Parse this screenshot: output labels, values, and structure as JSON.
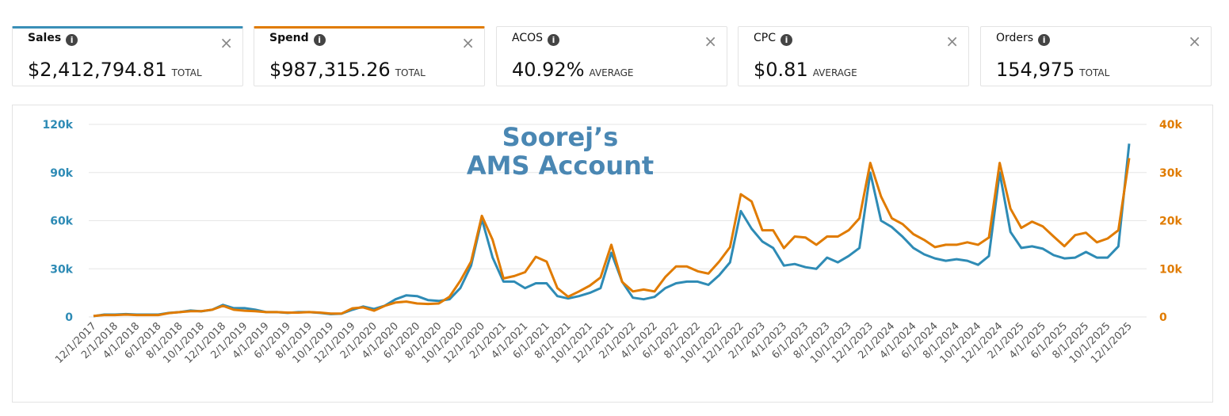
{
  "cards": [
    {
      "label": "Sales",
      "value": "$2,412,794.81",
      "unit": "TOTAL",
      "color": "#3a8fb7"
    },
    {
      "label": "Spend",
      "value": "$987,315.26",
      "unit": "TOTAL",
      "color": "#e07b00"
    },
    {
      "label": "ACOS",
      "value": "40.92%",
      "unit": "AVERAGE"
    },
    {
      "label": "CPC",
      "value": "$0.81",
      "unit": "AVERAGE"
    },
    {
      "label": "Orders",
      "value": "154,975",
      "unit": "TOTAL"
    }
  ],
  "chart_data": {
    "type": "line",
    "title": [
      "Soorej’s",
      "AMS Account"
    ],
    "categories": [
      "12/1/2017",
      null,
      "2/1/2018",
      null,
      "4/1/2018",
      null,
      "6/1/2018",
      null,
      "8/1/2018",
      null,
      "10/1/2018",
      null,
      "12/1/2018",
      null,
      "2/1/2019",
      null,
      "4/1/2019",
      null,
      "6/1/2019",
      null,
      "8/1/2019",
      null,
      "10/1/2019",
      null,
      "12/1/2019",
      null,
      "2/1/2020",
      null,
      "4/1/2020",
      null,
      "6/1/2020",
      null,
      "8/1/2020",
      null,
      "10/1/2020",
      null,
      "12/1/2020",
      null,
      "2/1/2021",
      null,
      "4/1/2021",
      null,
      "6/1/2021",
      null,
      "8/1/2021",
      null,
      "10/1/2021",
      null,
      "12/1/2021",
      null,
      "2/1/2022",
      null,
      "4/1/2022",
      null,
      "6/1/2022",
      null,
      "8/1/2022",
      null,
      "10/1/2022",
      null,
      "12/1/2022",
      null,
      "2/1/2023",
      null,
      "4/1/2023",
      null,
      "6/1/2023",
      null,
      "8/1/2023",
      null,
      "10/1/2023",
      null,
      "12/1/2023",
      null,
      "2/1/2024",
      null,
      "4/1/2024",
      null,
      "6/1/2024",
      null,
      "8/1/2024",
      null,
      "10/1/2024",
      null,
      "12/1/2024",
      null,
      "2/1/2025",
      null,
      "4/1/2025",
      null,
      "6/1/2025",
      null,
      "8/1/2025",
      null,
      "10/1/2025",
      null,
      "12/1/2025"
    ],
    "series": [
      {
        "color": "#2e8bb5",
        "values": [
          500,
          1500,
          1500,
          1800,
          1500,
          1500,
          1500,
          2500,
          3000,
          4000,
          3500,
          4500,
          7500,
          5500,
          5500,
          4500,
          3000,
          3000,
          2500,
          3000,
          3000,
          2500,
          1800,
          2000,
          4500,
          6500,
          5000,
          7000,
          11000,
          13500,
          13000,
          10500,
          10000,
          11000,
          18000,
          32000,
          61000,
          37000,
          22000,
          22000,
          18000,
          21000,
          21000,
          13000,
          11500,
          13000,
          15000,
          18000,
          40000,
          22000,
          12000,
          11000,
          12500,
          18000,
          21000,
          22000,
          22000,
          20000,
          26000,
          34000,
          66000,
          55000,
          47000,
          43000,
          32000,
          33000,
          31000,
          30000,
          37000,
          34000,
          38000,
          43000,
          90000,
          60000,
          56000,
          50000,
          43000,
          39000,
          36500,
          35000,
          36000,
          35000,
          32500,
          38000,
          90000,
          53000,
          43000,
          44000,
          42500,
          38500,
          36500,
          37000,
          40500,
          37000,
          37000,
          44000,
          108000
        ]
      },
      {
        "color": "#e07b00",
        "axis": "y2",
        "values": [
          200,
          400,
          400,
          500,
          400,
          400,
          400,
          800,
          1000,
          1200,
          1200,
          1500,
          2300,
          1500,
          1300,
          1200,
          1000,
          1000,
          900,
          900,
          1000,
          900,
          700,
          700,
          1800,
          2000,
          1300,
          2300,
          3000,
          3200,
          2800,
          2700,
          2800,
          4200,
          7500,
          11500,
          21000,
          16000,
          8000,
          8500,
          9300,
          12500,
          11500,
          6000,
          4200,
          5300,
          6500,
          8200,
          15000,
          7300,
          5300,
          5700,
          5300,
          8300,
          10500,
          10500,
          9500,
          9000,
          11500,
          14500,
          25500,
          24000,
          18000,
          18000,
          14300,
          16700,
          16500,
          15000,
          16700,
          16700,
          18000,
          20500,
          32000,
          25000,
          20500,
          19300,
          17200,
          16000,
          14500,
          15000,
          15000,
          15500,
          15000,
          16500,
          32000,
          22500,
          18500,
          19800,
          18800,
          16700,
          14700,
          17000,
          17500,
          15500,
          16300,
          18000,
          33000
        ]
      }
    ],
    "ylim": [
      0,
      120000
    ],
    "yticks": [
      0,
      {
        "value": 30000,
        "label": "30k"
      },
      {
        "value": 60000,
        "label": "60k"
      },
      {
        "value": 90000,
        "label": "90k"
      },
      {
        "value": 120000,
        "label": "120k"
      }
    ],
    "y2lim": [
      0,
      40000
    ],
    "y2ticks": [
      0,
      {
        "value": 10000,
        "label": "10k"
      },
      {
        "value": 20000,
        "label": "20k"
      },
      {
        "value": 30000,
        "label": "30k"
      },
      {
        "value": 40000,
        "label": "40k"
      }
    ],
    "grid": true
  }
}
